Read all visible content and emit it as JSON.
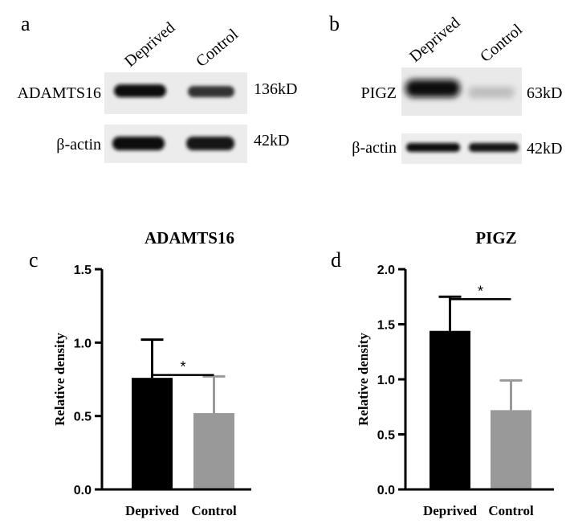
{
  "panels": {
    "a": {
      "letter": "a",
      "lanes": [
        "Deprived",
        "Control"
      ],
      "rows": [
        {
          "protein": "ADAMTS16",
          "size": "136kD"
        },
        {
          "protein": "β-actin",
          "size": "42kD"
        }
      ]
    },
    "b": {
      "letter": "b",
      "lanes": [
        "Deprived",
        "Control"
      ],
      "rows": [
        {
          "protein": "PIGZ",
          "size": "63kD"
        },
        {
          "protein": "β-actin",
          "size": "42kD"
        }
      ]
    },
    "c": {
      "letter": "c"
    },
    "d": {
      "letter": "d"
    }
  },
  "chart_data": [
    {
      "panel": "c",
      "type": "bar",
      "title": "ADAMTS16",
      "ylabel": "Relative density",
      "xlabel": "",
      "categories": [
        "Deprived",
        "Control"
      ],
      "values": [
        0.76,
        0.52
      ],
      "errors": [
        0.26,
        0.25
      ],
      "colors": [
        "#000000",
        "#999999"
      ],
      "ylim": [
        0,
        1.5
      ],
      "yticks": [
        0.0,
        0.5,
        1.0,
        1.5
      ],
      "ytick_labels": [
        "0.0",
        "0.5",
        "1.0",
        "1.5"
      ],
      "significance": "*",
      "grid": false
    },
    {
      "panel": "d",
      "type": "bar",
      "title": "PIGZ",
      "ylabel": "Relative density",
      "xlabel": "",
      "categories": [
        "Deprived",
        "Control"
      ],
      "values": [
        1.44,
        0.72
      ],
      "errors": [
        0.31,
        0.27
      ],
      "colors": [
        "#000000",
        "#999999"
      ],
      "ylim": [
        0,
        2.0
      ],
      "yticks": [
        0.0,
        0.5,
        1.0,
        1.5,
        2.0
      ],
      "ytick_labels": [
        "0.0",
        "0.5",
        "1.0",
        "1.5",
        "2.0"
      ],
      "significance": "*",
      "grid": false
    }
  ]
}
